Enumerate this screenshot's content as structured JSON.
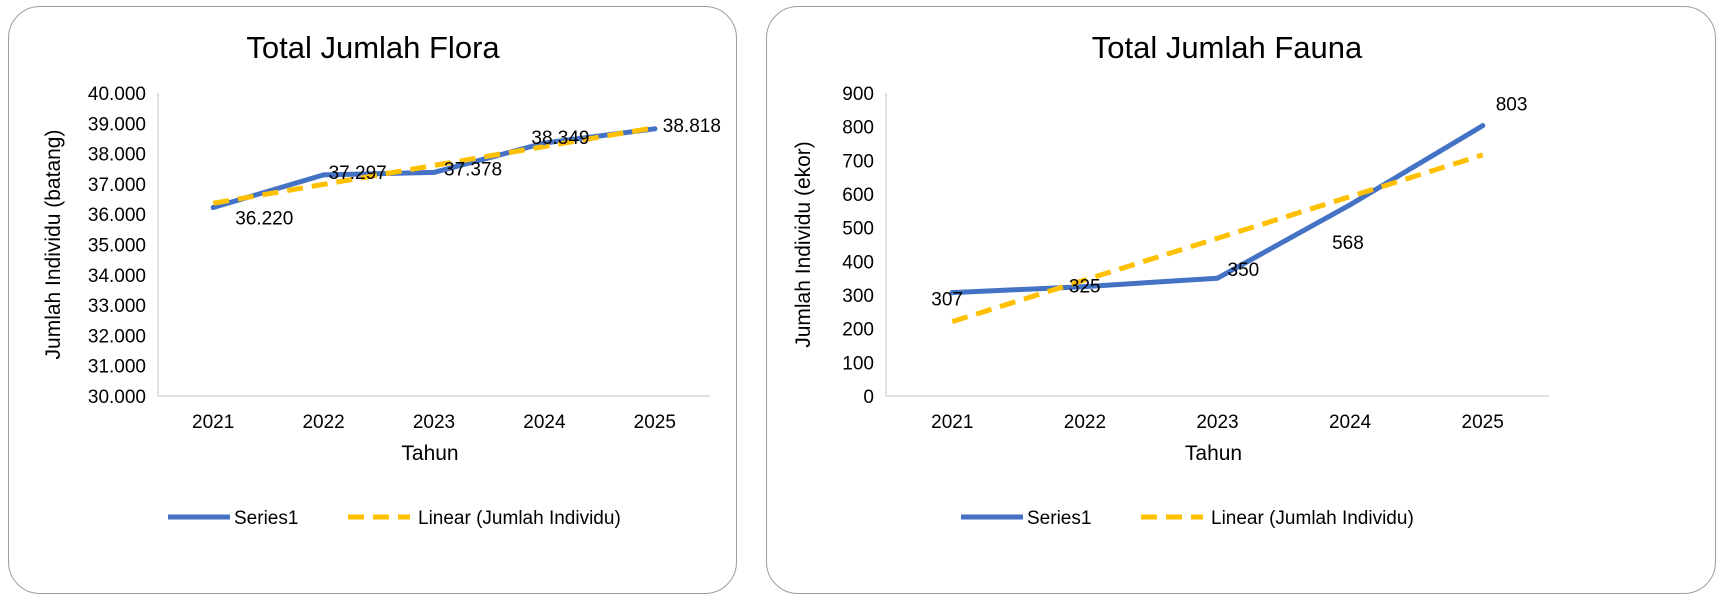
{
  "colors": {
    "series": "#4472C4",
    "trend": "#FFC000",
    "axis": "#d9d9d9"
  },
  "chart_data": [
    {
      "type": "line",
      "title": "Total Jumlah Flora",
      "xlabel": "Tahun",
      "ylabel": "Jumlah Individu (batang)",
      "categories": [
        "2021",
        "2022",
        "2023",
        "2024",
        "2025"
      ],
      "ylim": [
        30000,
        40000
      ],
      "yticks": [
        "30.000",
        "31.000",
        "32.000",
        "33.000",
        "34.000",
        "35.000",
        "36.000",
        "37.000",
        "38.000",
        "39.000",
        "40.000"
      ],
      "series": [
        {
          "name": "Series1",
          "values": [
            36220,
            37297,
            37378,
            38349,
            38818
          ],
          "labels": [
            "36.220",
            "37.297",
            "37.378",
            "38.349",
            "38.818"
          ]
        }
      ],
      "trendline": {
        "name": "Linear (Jumlah Individu)",
        "start": 36361,
        "end": 38858
      },
      "grid": false,
      "legend": "bottom"
    },
    {
      "type": "line",
      "title": "Total Jumlah Fauna",
      "xlabel": "Tahun",
      "ylabel": "Jumlah Individu (ekor)",
      "categories": [
        "2021",
        "2022",
        "2023",
        "2024",
        "2025"
      ],
      "ylim": [
        0,
        900
      ],
      "yticks": [
        "0",
        "100",
        "200",
        "300",
        "400",
        "500",
        "600",
        "700",
        "800",
        "900"
      ],
      "series": [
        {
          "name": "Series1",
          "values": [
            307,
            325,
            350,
            568,
            803
          ],
          "labels": [
            "307",
            "325",
            "350",
            "568",
            "803"
          ]
        }
      ],
      "trendline": {
        "name": "Linear (Jumlah Individu)",
        "start": 221,
        "end": 716
      },
      "grid": false,
      "legend": "bottom"
    }
  ]
}
